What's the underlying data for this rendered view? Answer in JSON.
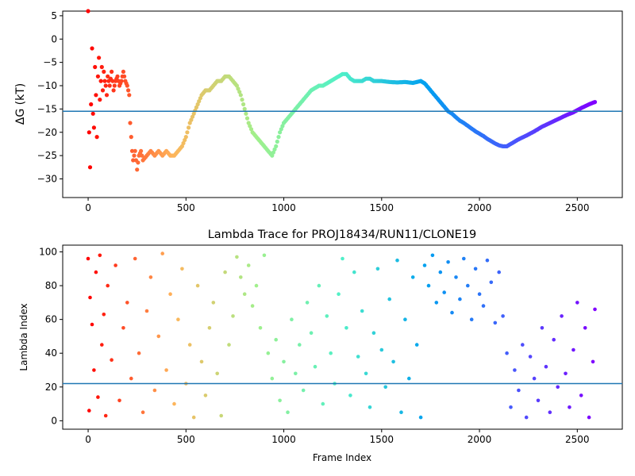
{
  "chart_data": [
    {
      "type": "scatter",
      "title": "",
      "xlabel": "",
      "ylabel": "ΔG (kT)",
      "xlim": [
        -130,
        2730
      ],
      "ylim": [
        -34,
        6
      ],
      "xticks": [
        0,
        500,
        1000,
        1500,
        2000,
        2500
      ],
      "yticks": [
        -30,
        -25,
        -20,
        -15,
        -10,
        -5,
        0,
        5
      ],
      "hline": -15.5,
      "hline_color": "#1f77b4",
      "colormap": "rainbow (red at frame 0 → violet at frame 2600)",
      "series": [
        {
          "x": [
            0,
            5,
            10,
            15,
            20,
            25,
            30,
            35,
            40,
            45,
            50,
            55,
            60,
            65,
            70,
            75,
            80,
            85,
            90,
            95,
            100,
            110,
            120,
            130,
            140,
            150,
            160,
            170,
            180,
            190,
            200,
            210,
            215,
            220,
            225,
            230,
            240,
            250,
            260,
            270,
            280,
            300,
            320,
            340,
            360,
            380,
            400,
            420,
            440,
            460,
            480,
            500,
            520,
            540,
            560,
            580,
            600,
            620,
            640,
            660,
            680,
            700,
            720,
            740,
            760,
            780,
            800,
            820,
            840,
            860,
            880,
            900,
            920,
            940,
            960,
            980,
            1000,
            1020,
            1040,
            1060,
            1080,
            1100,
            1120,
            1140,
            1160,
            1180,
            1200,
            1220,
            1240,
            1260,
            1280,
            1300,
            1320,
            1340,
            1360,
            1380,
            1400,
            1420,
            1440,
            1460,
            1480,
            1500,
            1540,
            1580,
            1620,
            1660,
            1700,
            1720,
            1740,
            1760,
            1780,
            1800,
            1820,
            1840,
            1860,
            1880,
            1900,
            1920,
            1940,
            1960,
            1980,
            2000,
            2020,
            2040,
            2060,
            2080,
            2100,
            2120,
            2140,
            2160,
            2180,
            2200,
            2240,
            2280,
            2320,
            2360,
            2400,
            2440,
            2480,
            2520,
            2560,
            2590
          ],
          "y": [
            6,
            -20,
            -27.5,
            -14,
            -2,
            -16,
            -19,
            -6,
            -12,
            -21,
            -8,
            -4,
            -13,
            -9,
            -6,
            -11,
            -7,
            -9,
            -10,
            -12,
            -8,
            -10,
            -7,
            -11,
            -9,
            -8,
            -10,
            -9,
            -7,
            -9,
            -10,
            -12,
            -18,
            -21,
            -24,
            -26,
            -24,
            -28,
            -25,
            -24,
            -26,
            -25,
            -24,
            -25,
            -24,
            -25,
            -24,
            -25,
            -25,
            -24,
            -23,
            -21,
            -18,
            -16,
            -14,
            -12,
            -11,
            -11,
            -10,
            -9,
            -9,
            -8,
            -8,
            -9,
            -10,
            -12,
            -15,
            -18,
            -20,
            -21,
            -22,
            -23,
            -24,
            -25,
            -23,
            -20,
            -18,
            -17,
            -16,
            -15,
            -14,
            -13,
            -12,
            -11,
            -10.5,
            -10,
            -10,
            -9.5,
            -9,
            -8.5,
            -8,
            -7.5,
            -7.5,
            -8.5,
            -9,
            -9,
            -9,
            -8.5,
            -8.5,
            -9,
            -9,
            -9,
            -9.2,
            -9.3,
            -9.2,
            -9.4,
            -9,
            -9.5,
            -10.5,
            -11.5,
            -12.5,
            -13.5,
            -14.5,
            -15.5,
            -16,
            -16.8,
            -17.5,
            -18,
            -18.6,
            -19.2,
            -19.8,
            -20.3,
            -20.8,
            -21.4,
            -21.9,
            -22.4,
            -22.8,
            -23,
            -23,
            -22.5,
            -22,
            -21.5,
            -20.7,
            -19.8,
            -18.8,
            -18,
            -17.2,
            -16.4,
            -15.7,
            -14.8,
            -14,
            -13.5
          ]
        }
      ]
    },
    {
      "type": "scatter",
      "title": "Lambda Trace for PROJ18434/RUN11/CLONE19",
      "xlabel": "Frame Index",
      "ylabel": "Lambda Index",
      "xlim": [
        -130,
        2730
      ],
      "ylim": [
        -5,
        104
      ],
      "xticks": [
        0,
        500,
        1000,
        1500,
        2000,
        2500
      ],
      "yticks": [
        0,
        20,
        40,
        60,
        80,
        100
      ],
      "hline": 22,
      "hline_color": "#1f77b4",
      "colormap": "rainbow (red at frame 0 → violet at frame 2600)",
      "series": [
        {
          "x": [
            0,
            5,
            10,
            20,
            30,
            40,
            50,
            60,
            70,
            80,
            90,
            100,
            120,
            140,
            160,
            180,
            200,
            220,
            240,
            260,
            280,
            300,
            320,
            340,
            360,
            380,
            400,
            420,
            440,
            460,
            480,
            500,
            520,
            540,
            560,
            580,
            600,
            620,
            640,
            660,
            680,
            700,
            720,
            740,
            760,
            780,
            800,
            820,
            840,
            860,
            880,
            900,
            920,
            940,
            960,
            980,
            1000,
            1020,
            1040,
            1060,
            1080,
            1100,
            1120,
            1140,
            1160,
            1180,
            1200,
            1220,
            1240,
            1260,
            1280,
            1300,
            1320,
            1340,
            1360,
            1380,
            1400,
            1420,
            1440,
            1460,
            1480,
            1500,
            1520,
            1540,
            1560,
            1580,
            1600,
            1620,
            1640,
            1660,
            1680,
            1700,
            1720,
            1740,
            1760,
            1780,
            1800,
            1820,
            1840,
            1860,
            1880,
            1900,
            1920,
            1940,
            1960,
            1980,
            2000,
            2020,
            2040,
            2060,
            2080,
            2100,
            2120,
            2140,
            2160,
            2180,
            2200,
            2220,
            2240,
            2260,
            2280,
            2300,
            2320,
            2340,
            2360,
            2380,
            2400,
            2420,
            2440,
            2460,
            2480,
            2500,
            2520,
            2540,
            2560,
            2580,
            2590
          ],
          "y": [
            96,
            6,
            73,
            57,
            30,
            88,
            14,
            98,
            45,
            63,
            3,
            80,
            36,
            92,
            12,
            55,
            70,
            25,
            96,
            40,
            5,
            65,
            85,
            18,
            50,
            99,
            30,
            75,
            10,
            60,
            90,
            22,
            45,
            2,
            80,
            35,
            15,
            55,
            70,
            28,
            3,
            88,
            45,
            62,
            97,
            85,
            75,
            92,
            68,
            80,
            55,
            98,
            40,
            25,
            48,
            12,
            35,
            5,
            60,
            28,
            45,
            18,
            70,
            52,
            32,
            80,
            10,
            62,
            40,
            22,
            75,
            96,
            55,
            15,
            88,
            38,
            65,
            28,
            8,
            52,
            90,
            42,
            20,
            72,
            35,
            95,
            5,
            60,
            25,
            85,
            45,
            2,
            92,
            80,
            98,
            70,
            88,
            76,
            94,
            64,
            85,
            72,
            96,
            80,
            60,
            90,
            75,
            68,
            95,
            82,
            58,
            88,
            62,
            40,
            8,
            30,
            18,
            45,
            2,
            38,
            25,
            12,
            55,
            32,
            5,
            48,
            20,
            62,
            28,
            8,
            42,
            70,
            15,
            55,
            2,
            35,
            66
          ]
        }
      ]
    }
  ]
}
